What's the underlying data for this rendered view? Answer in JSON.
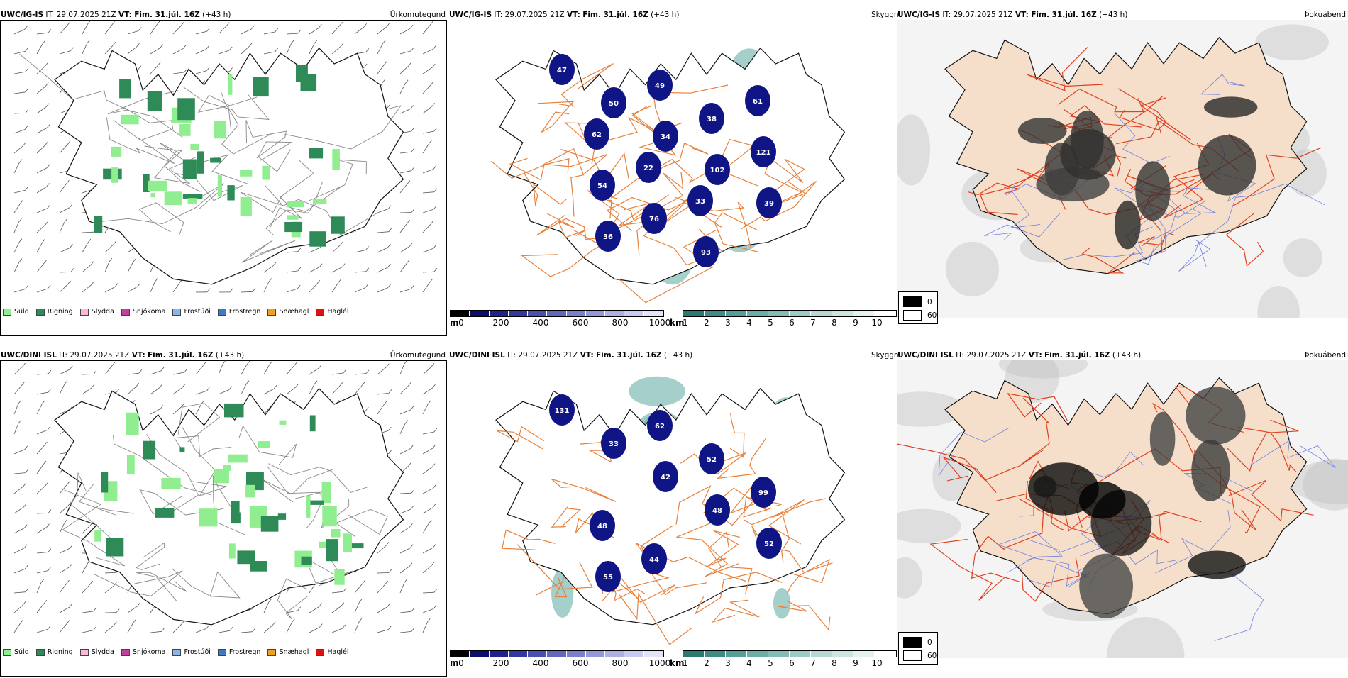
{
  "precip_legend": [
    {
      "label": "Súld",
      "color": "#90ee90"
    },
    {
      "label": "Rigning",
      "color": "#2e8b57"
    },
    {
      "label": "Slydda",
      "color": "#ffb6d9"
    },
    {
      "label": "Snjókoma",
      "color": "#c040a0"
    },
    {
      "label": "Frostúði",
      "color": "#87b7ea"
    },
    {
      "label": "Frostregn",
      "color": "#3a7ac8"
    },
    {
      "label": "Snæhagl",
      "color": "#f0a020"
    },
    {
      "label": "Haglél",
      "color": "#e01010"
    }
  ],
  "ceiling_scale": {
    "unit": "m",
    "ticks": [
      "0",
      "200",
      "400",
      "600",
      "800",
      "1000"
    ]
  },
  "visibility_scale": {
    "unit": "km",
    "ticks": [
      "1",
      "2",
      "3",
      "4",
      "5",
      "6",
      "7",
      "8",
      "9",
      "10"
    ]
  },
  "fog_legend": {
    "low": "0",
    "high": "60"
  },
  "colors": {
    "island_fill": "#f5dfcb",
    "roads": "#e8803a",
    "coast": "#000000",
    "cloud_base": "#101585",
    "visibility": "#5aa8a0"
  },
  "rows": [
    {
      "model": "UWC/IG-IS",
      "it_label": "IT:",
      "it": "29.07.2025 21Z",
      "vt_label": "VT:",
      "vt": "Fim. 31.júl. 16Z",
      "lead": "(+43 h)",
      "panels": [
        "Úrkomutegund",
        "Skyggni",
        "Þokuábendi"
      ],
      "ceiling_values": [
        "47",
        "50",
        "34",
        "102",
        "39",
        "36",
        "49",
        "38",
        "121",
        "54",
        "76",
        "93",
        "61",
        "62",
        "22",
        "33"
      ]
    },
    {
      "model": "UWC/DINI ISL",
      "it_label": "IT:",
      "it": "29.07.2025 21Z",
      "vt_label": "VT:",
      "vt": "Fim. 31.júl. 16Z",
      "lead": "(+43 h)",
      "panels": [
        "Úrkomutegund",
        "Skyggni",
        "Þokuábendi"
      ],
      "ceiling_values": [
        "131",
        "33",
        "42",
        "48",
        "52",
        "55",
        "62",
        "52",
        "99",
        "48",
        "44"
      ]
    }
  ]
}
